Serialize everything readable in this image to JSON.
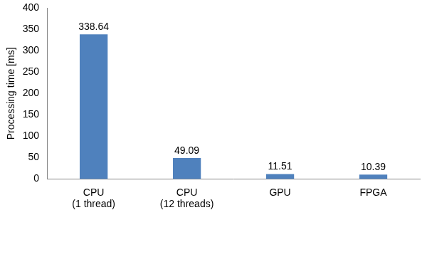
{
  "chart_data": {
    "type": "bar",
    "y_label": "Processing time [ms]",
    "categories": [
      "CPU\n(1 thread)",
      "CPU\n(12 threads)",
      "GPU",
      "FPGA"
    ],
    "values": [
      338.64,
      49.09,
      11.51,
      10.39
    ],
    "color": "#4f81bd",
    "ylim": [
      0,
      400
    ],
    "yticks": [
      0,
      50,
      100,
      150,
      200,
      250,
      300,
      350,
      400
    ],
    "grid": false,
    "data_labels": true
  }
}
